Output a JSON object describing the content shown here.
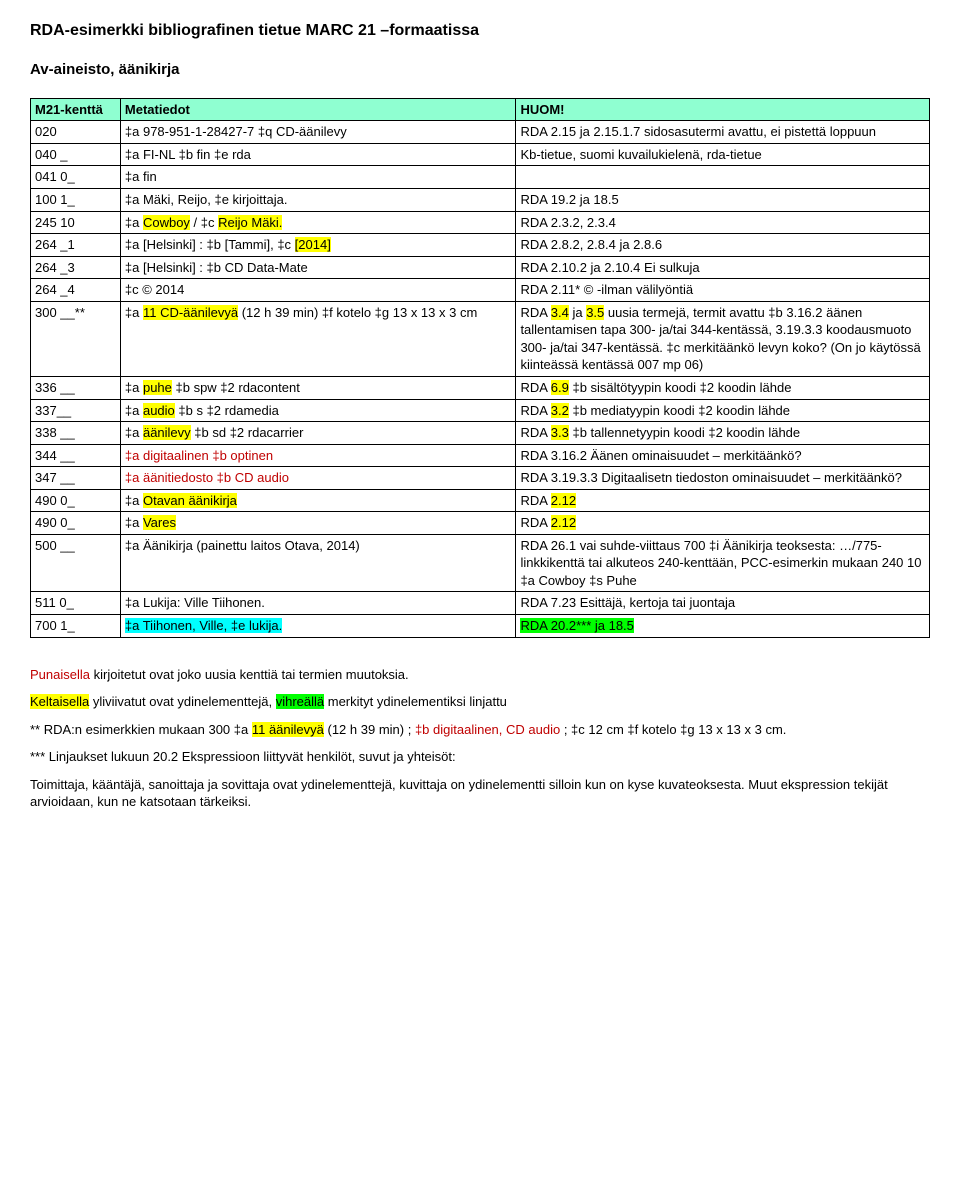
{
  "title_main": "RDA-esimerkki bibliografinen tietue MARC 21 –formaatissa",
  "title_sub": "Av-aineisto, äänikirja",
  "header": {
    "c1": "M21-kenttä",
    "c2": "Metatiedot",
    "c3": "HUOM!"
  },
  "rows": [
    {
      "tag": "020",
      "meta": [
        [
          "",
          "‡a 978-951-1-28427-7 ‡q CD-äänilevy"
        ]
      ],
      "note": [
        [
          "",
          "RDA 2.15 ja 2.15.1.7 sidosasutermi avattu, ei pistettä loppuun"
        ]
      ]
    },
    {
      "tag": "040 _",
      "meta": [
        [
          "",
          "‡a FI-NL ‡b fin ‡e rda"
        ]
      ],
      "note": [
        [
          "",
          "Kb-tietue, suomi kuvailukielenä, rda-tietue"
        ]
      ]
    },
    {
      "tag": "041 0_",
      "meta": [
        [
          "",
          "‡a fin"
        ]
      ],
      "note": [
        [
          "",
          ""
        ]
      ]
    },
    {
      "tag": "100 1_",
      "meta": [
        [
          "",
          "‡a Mäki, Reijo, ‡e kirjoittaja."
        ]
      ],
      "note": [
        [
          "",
          "RDA 19.2 ja 18.5"
        ]
      ]
    },
    {
      "tag": "245 10",
      "meta": [
        [
          "",
          "‡a "
        ],
        [
          "y",
          "Cowboy"
        ],
        [
          "",
          " / ‡c "
        ],
        [
          "y",
          "Reijo Mäki."
        ]
      ],
      "note": [
        [
          "",
          "RDA 2.3.2, 2.3.4"
        ]
      ]
    },
    {
      "tag": "264 _1",
      "meta": [
        [
          "",
          "‡a [Helsinki] : ‡b [Tammi], ‡c "
        ],
        [
          "y",
          "[2014]"
        ]
      ],
      "note": [
        [
          "",
          "RDA 2.8.2, 2.8.4 ja 2.8.6"
        ]
      ]
    },
    {
      "tag": "264 _3",
      "meta": [
        [
          "",
          "‡a [Helsinki] : ‡b CD Data-Mate"
        ]
      ],
      "note": [
        [
          "",
          "RDA 2.10.2 ja 2.10.4 Ei sulkuja"
        ]
      ]
    },
    {
      "tag": "264 _4",
      "meta": [
        [
          "",
          "‡c © 2014"
        ]
      ],
      "note": [
        [
          "",
          "RDA 2.11* © -ilman välilyöntiä"
        ]
      ]
    },
    {
      "tag": "300 __**",
      "meta": [
        [
          "",
          "‡a "
        ],
        [
          "y",
          "11 CD-äänilevyä"
        ],
        [
          "",
          " (12 h 39 min) ‡f kotelo ‡g 13 x 13 x 3 cm"
        ]
      ],
      "note": [
        [
          "",
          "RDA "
        ],
        [
          "y",
          "3.4"
        ],
        [
          "",
          " ja  "
        ],
        [
          "y",
          "3.5"
        ],
        [
          "",
          "  uusia termejä, termit avattu ‡b 3.16.2 äänen tallentamisen tapa 300- ja/tai 344-kentässä, 3.19.3.3 koodausmuoto 300- ja/tai 347-kentässä.    ‡c merkitäänkö levyn koko? (On jo käytössä kiinteässä kentässä 007 mp 06)"
        ]
      ]
    },
    {
      "tag": "336 __",
      "meta": [
        [
          "",
          "‡a "
        ],
        [
          "y",
          "puhe"
        ],
        [
          "",
          " ‡b spw ‡2 rdacontent"
        ]
      ],
      "note": [
        [
          "",
          "RDA "
        ],
        [
          "y",
          "6.9"
        ],
        [
          "",
          "  ‡b sisältötyypin koodi ‡2 koodin lähde"
        ]
      ]
    },
    {
      "tag": "337__",
      "meta": [
        [
          "",
          "‡a "
        ],
        [
          "y",
          "audio"
        ],
        [
          "",
          " ‡b s ‡2 rdamedia"
        ]
      ],
      "note": [
        [
          "",
          "RDA "
        ],
        [
          "y",
          "3.2"
        ],
        [
          "",
          "  ‡b mediatyypin koodi ‡2 koodin lähde"
        ]
      ]
    },
    {
      "tag": "338 __",
      "meta": [
        [
          "",
          "‡a "
        ],
        [
          "y",
          "äänilevy"
        ],
        [
          "",
          " ‡b sd ‡2 rdacarrier"
        ]
      ],
      "note": [
        [
          "",
          "RDA "
        ],
        [
          "y",
          "3.3"
        ],
        [
          "",
          "  ‡b tallennetyypin koodi ‡2 koodin lähde"
        ]
      ]
    },
    {
      "tag": "344 __",
      "meta": [
        [
          "red",
          "‡a digitaalinen ‡b optinen"
        ]
      ],
      "note": [
        [
          "",
          "RDA 3.16.2 Äänen ominaisuudet – merkitäänkö?"
        ]
      ]
    },
    {
      "tag": "347 __",
      "meta": [
        [
          "red",
          "‡a äänitiedosto ‡b CD audio"
        ]
      ],
      "note": [
        [
          "",
          "RDA 3.19.3.3 Digitaalisetn tiedoston ominaisuudet – merkitäänkö?"
        ]
      ]
    },
    {
      "tag": "490 0_",
      "meta": [
        [
          "",
          "‡a "
        ],
        [
          "y",
          "Otavan äänikirja"
        ]
      ],
      "note": [
        [
          "",
          "RDA "
        ],
        [
          "y",
          "2.12"
        ]
      ]
    },
    {
      "tag": "490 0_",
      "meta": [
        [
          "",
          "‡a "
        ],
        [
          "y",
          "Vares"
        ]
      ],
      "note": [
        [
          "",
          "RDA "
        ],
        [
          "y",
          "2.12"
        ]
      ]
    },
    {
      "tag": "500 __",
      "meta": [
        [
          "",
          "‡a Äänikirja (painettu laitos Otava, 2014)"
        ]
      ],
      "note": [
        [
          "",
          "RDA 26.1 vai suhde-viittaus 700 ‡i Äänikirja teoksesta: …/775-linkkikenttä tai alkuteos 240-kenttään,  PCC-esimerkin mukaan  240 10 ‡a Cowboy ‡s Puhe"
        ]
      ]
    },
    {
      "tag": "511 0_",
      "meta": [
        [
          "",
          "‡a Lukija: Ville Tiihonen."
        ]
      ],
      "note": [
        [
          "",
          "RDA 7.23 Esittäjä, kertoja tai juontaja"
        ]
      ]
    },
    {
      "tag": "700 1_",
      "meta": [
        [
          "c",
          "‡a Tiihonen, Ville, ‡e lukija."
        ]
      ],
      "note": [
        [
          "g",
          "RDA 20.2*** ja 18.5"
        ]
      ]
    }
  ],
  "fn": {
    "l1a": "Punaisella",
    "l1b": " kirjoitetut ovat joko uusia kenttiä tai termien muutoksia.",
    "l2a": "Keltaisella",
    "l2b": " yliviivatut ovat ydinelementtejä, ",
    "l2c": "vihreällä",
    "l2d": " merkityt ydinelementiksi linjattu",
    "l3a": "** RDA:n esimerkkien mukaan 300 ‡a ",
    "l3b": "11 äänilevyä",
    "l3c": " (12 h 39 min) ; ",
    "l3d": "‡b digitaalinen, CD audio",
    "l3e": " ; ‡c 12 cm ‡f kotelo ‡g 13 x 13 x 3 cm.",
    "l4": "*** Linjaukset lukuun 20.2 Ekspressioon liittyvät henkilöt, suvut ja yhteisöt:",
    "l5": "Toimittaja, kääntäjä, sanoittaja ja sovittaja ovat ydinelementtejä, kuvittaja on ydinelementti silloin kun on kyse kuvateoksesta.  Muut ekspression tekijät arvioidaan, kun ne katsotaan tärkeiksi."
  }
}
